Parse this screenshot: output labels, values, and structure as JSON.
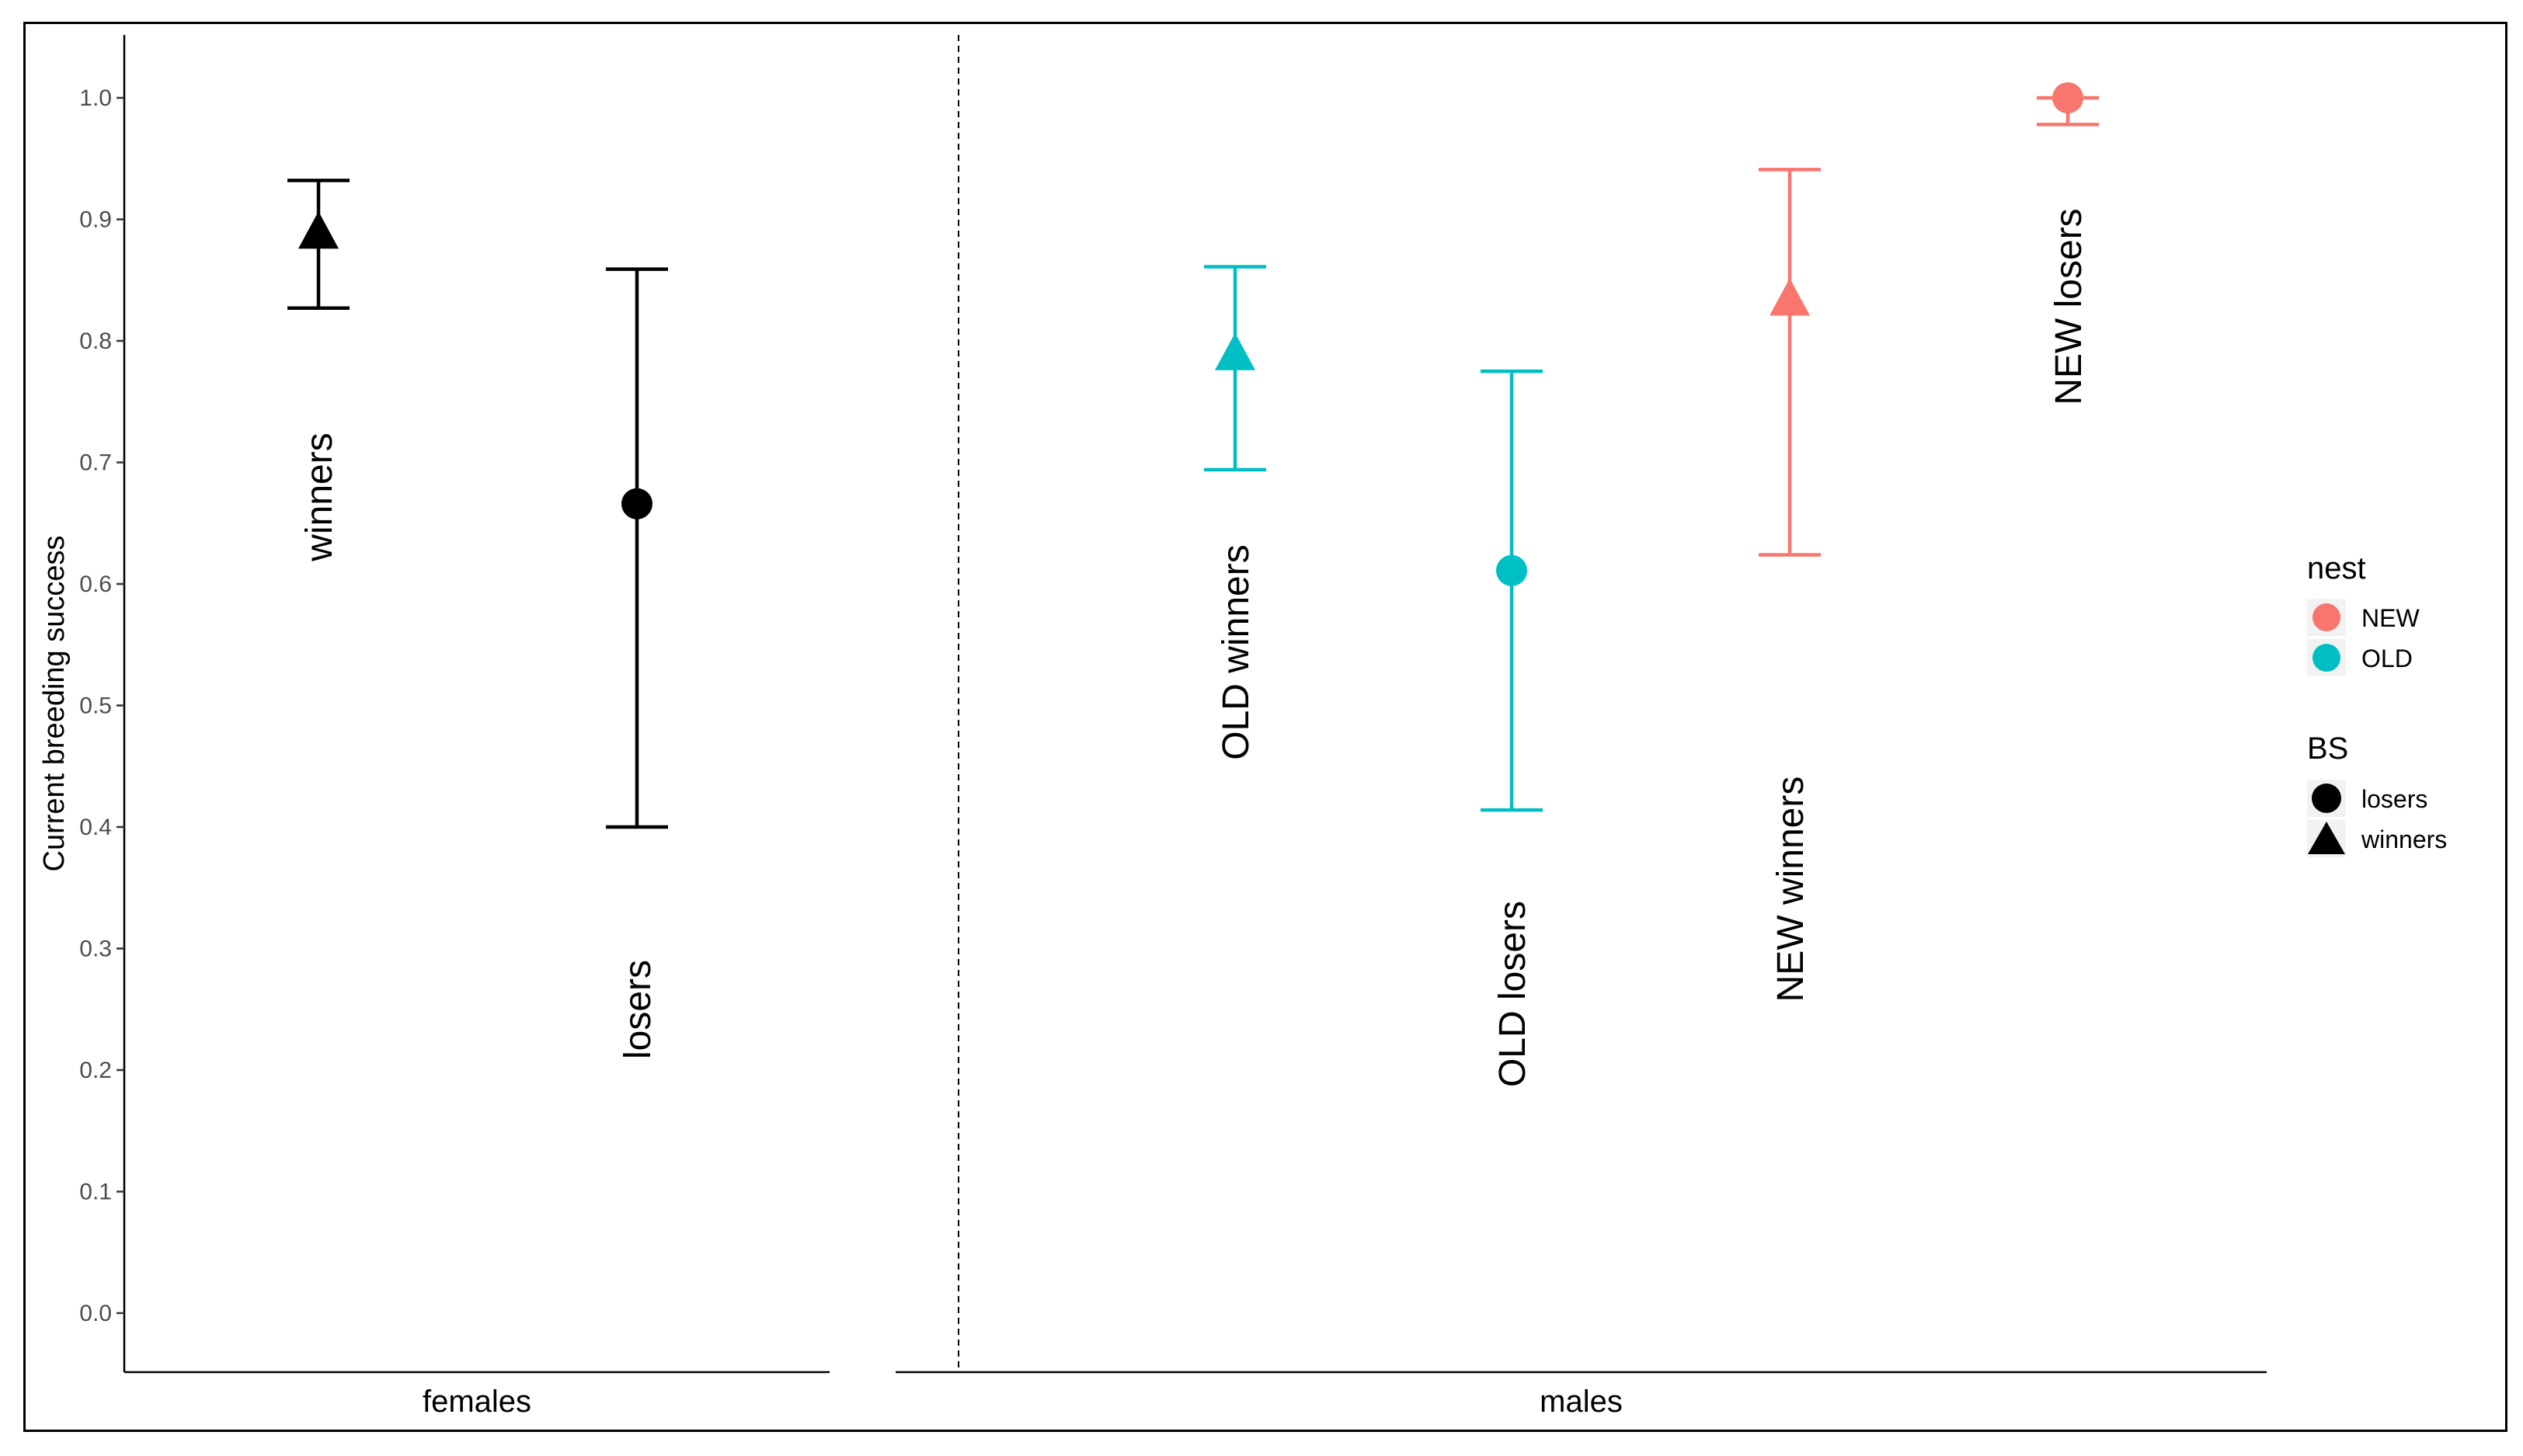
{
  "chart_data": {
    "type": "scatter",
    "ylabel": "Current breeding success",
    "ylim": [
      -0.05,
      1.05
    ],
    "yticks": [
      "0.0",
      "0.1",
      "0.2",
      "0.3",
      "0.4",
      "0.5",
      "0.6",
      "0.7",
      "0.8",
      "0.9",
      "1.0"
    ],
    "grid": false,
    "facets": [
      {
        "name": "females",
        "points": [
          {
            "label": "winners",
            "shape": "triangle",
            "color": "#000000",
            "y": 0.89,
            "lower": 0.827,
            "upper": 0.932
          },
          {
            "label": "losers",
            "shape": "circle",
            "color": "#000000",
            "y": 0.666,
            "lower": 0.4,
            "upper": 0.859
          }
        ]
      },
      {
        "name": "males",
        "points": [
          {
            "label": "OLD winners",
            "shape": "triangle",
            "color": "#00BFC4",
            "y": 0.79,
            "lower": 0.694,
            "upper": 0.861
          },
          {
            "label": "OLD losers",
            "shape": "circle",
            "color": "#00BFC4",
            "y": 0.611,
            "lower": 0.414,
            "upper": 0.775
          },
          {
            "label": "NEW winners",
            "shape": "triangle",
            "color": "#F8766D",
            "y": 0.835,
            "lower": 0.624,
            "upper": 0.941
          },
          {
            "label": "NEW losers",
            "shape": "circle",
            "color": "#F8766D",
            "y": 1.0,
            "lower": 0.978,
            "upper": 1.0
          }
        ]
      }
    ],
    "legend": {
      "position": "right",
      "groups": [
        {
          "title": "nest",
          "items": [
            {
              "label": "NEW",
              "color": "#F8766D"
            },
            {
              "label": "OLD",
              "color": "#00BFC4"
            }
          ]
        },
        {
          "title": "BS",
          "items": [
            {
              "label": "losers",
              "shape": "circle"
            },
            {
              "label": "winners",
              "shape": "triangle"
            }
          ]
        }
      ]
    }
  }
}
